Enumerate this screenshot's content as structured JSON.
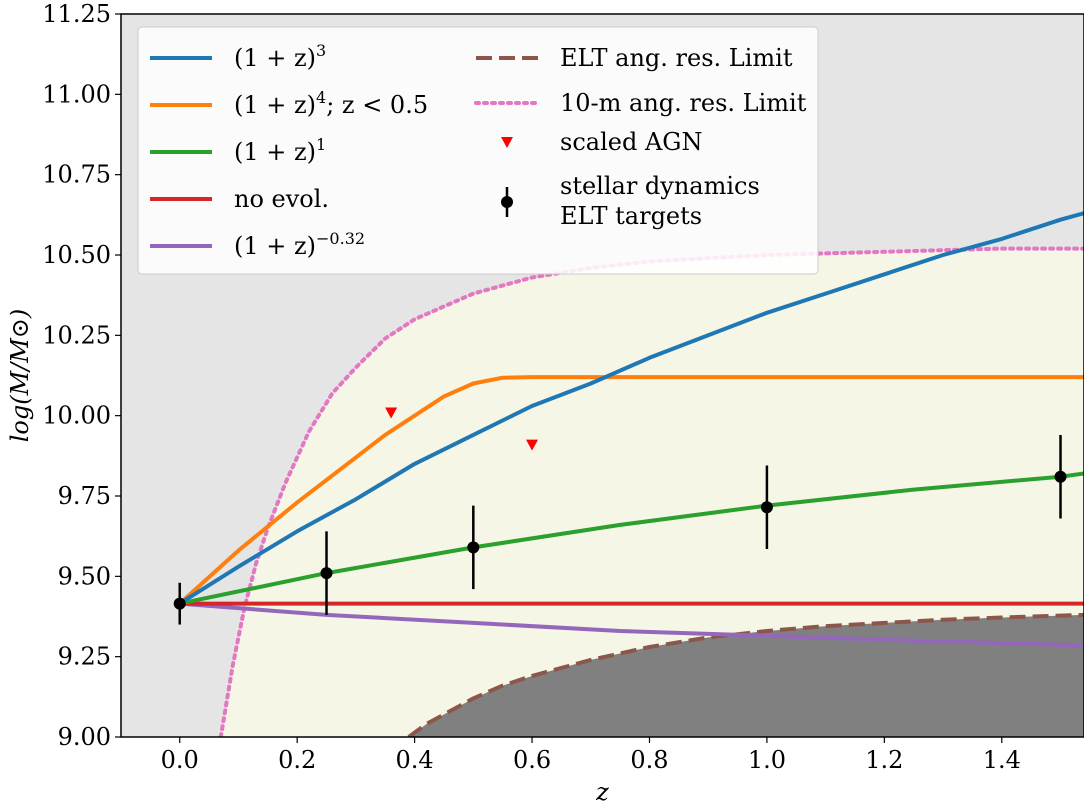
{
  "chart_data": {
    "type": "line",
    "xlabel": "z",
    "ylabel": "log(M/M⊙)",
    "xlim": [
      -0.1,
      1.54
    ],
    "ylim": [
      9.0,
      11.25
    ],
    "xticks": [
      "0.0",
      "0.2",
      "0.4",
      "0.6",
      "0.8",
      "1.0",
      "1.2",
      "1.4"
    ],
    "yticks": [
      "9.00",
      "9.25",
      "9.50",
      "9.75",
      "10.00",
      "10.25",
      "10.50",
      "10.75",
      "11.00",
      "11.25"
    ],
    "grid": false,
    "legend_position": "upper-left",
    "background_color": "#e5e5e5",
    "accessible_region_color": "#f6f6e6",
    "inaccessible_region_color": "#808080",
    "series": [
      {
        "name": "(1+z)^3",
        "label_main": "(1 + z)",
        "label_sup": "3",
        "color": "#1f77b4",
        "style": "solid",
        "x": [
          0,
          0.1,
          0.2,
          0.3,
          0.4,
          0.5,
          0.6,
          0.7,
          0.8,
          0.9,
          1.0,
          1.1,
          1.2,
          1.3,
          1.4,
          1.5,
          1.54
        ],
        "y": [
          9.415,
          9.53,
          9.64,
          9.74,
          9.85,
          9.94,
          10.03,
          10.1,
          10.18,
          10.25,
          10.32,
          10.38,
          10.44,
          10.5,
          10.55,
          10.61,
          10.63
        ]
      },
      {
        "name": "(1+z)^4; z<0.5",
        "label_main": "(1 + z)",
        "label_sup": "4",
        "label_tail": "; z < 0.5",
        "color": "#ff7f0e",
        "style": "solid",
        "x": [
          0,
          0.1,
          0.2,
          0.3,
          0.35,
          0.4,
          0.45,
          0.5,
          0.55,
          0.6,
          0.7,
          0.8,
          1.0,
          1.2,
          1.4,
          1.54
        ],
        "y": [
          9.415,
          9.58,
          9.73,
          9.87,
          9.94,
          10.0,
          10.06,
          10.1,
          10.118,
          10.12,
          10.12,
          10.12,
          10.12,
          10.12,
          10.12,
          10.12
        ]
      },
      {
        "name": "(1+z)^1",
        "label_main": "(1 + z)",
        "label_sup": "1",
        "color": "#2ca02c",
        "style": "solid",
        "x": [
          0,
          0.25,
          0.5,
          0.75,
          1.0,
          1.25,
          1.5,
          1.54
        ],
        "y": [
          9.415,
          9.51,
          9.59,
          9.66,
          9.72,
          9.77,
          9.81,
          9.82
        ]
      },
      {
        "name": "no evol.",
        "label_main": "no evol.",
        "color": "#d62728",
        "style": "solid",
        "x": [
          0,
          1.54
        ],
        "y": [
          9.415,
          9.415
        ]
      },
      {
        "name": "(1+z)^-0.32",
        "label_main": "(1 + z)",
        "label_sup": "−0.32",
        "color": "#9467bd",
        "style": "solid",
        "x": [
          0,
          0.25,
          0.5,
          0.75,
          1.0,
          1.25,
          1.54
        ],
        "y": [
          9.415,
          9.38,
          9.355,
          9.33,
          9.315,
          9.3,
          9.285
        ]
      },
      {
        "name": "ELT ang. res. Limit",
        "label_main": "ELT ang. res. Limit",
        "color": "#8c564b",
        "style": "dashed",
        "x": [
          0.39,
          0.42,
          0.46,
          0.5,
          0.55,
          0.6,
          0.7,
          0.8,
          0.9,
          1.0,
          1.1,
          1.2,
          1.3,
          1.4,
          1.54
        ],
        "y": [
          9.0,
          9.04,
          9.08,
          9.12,
          9.16,
          9.19,
          9.24,
          9.28,
          9.31,
          9.33,
          9.345,
          9.355,
          9.365,
          9.372,
          9.38
        ]
      },
      {
        "name": "10-m ang. res. Limit",
        "label_main": "10-m ang. res. Limit",
        "color": "#e377c2",
        "style": "dotted",
        "x": [
          0.07,
          0.09,
          0.11,
          0.13,
          0.15,
          0.18,
          0.22,
          0.26,
          0.3,
          0.35,
          0.4,
          0.5,
          0.6,
          0.7,
          0.8,
          1.0,
          1.2,
          1.4,
          1.54
        ],
        "y": [
          9.0,
          9.22,
          9.4,
          9.54,
          9.65,
          9.79,
          9.95,
          10.07,
          10.15,
          10.24,
          10.3,
          10.38,
          10.43,
          10.46,
          10.48,
          10.5,
          10.51,
          10.52,
          10.52
        ]
      }
    ],
    "scaled_agn": {
      "name": "scaled AGN",
      "color": "#ff0000",
      "x": [
        0.36,
        0.6
      ],
      "y": [
        10.01,
        9.91
      ]
    },
    "elt_targets": {
      "name_line1": "stellar dynamics",
      "name_line2": "ELT targets",
      "color": "#000000",
      "x": [
        0.0,
        0.25,
        0.5,
        1.0,
        1.5
      ],
      "y": [
        9.415,
        9.51,
        9.59,
        9.715,
        9.81
      ],
      "err": [
        0.065,
        0.13,
        0.13,
        0.13,
        0.13
      ]
    }
  }
}
